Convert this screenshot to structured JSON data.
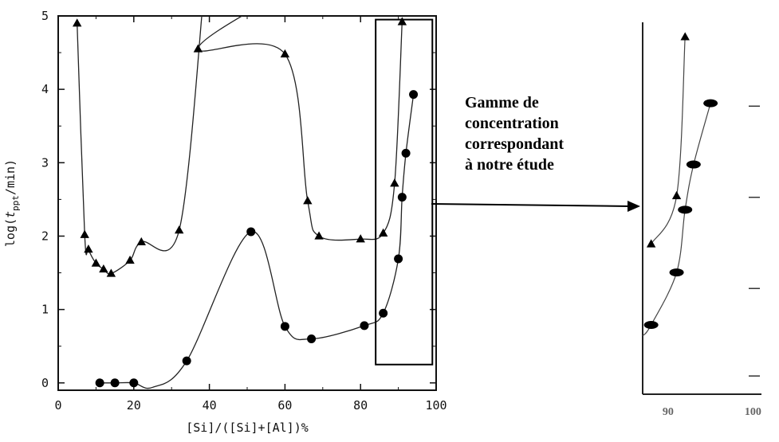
{
  "annotation": {
    "lines": [
      "Gamme de",
      "concentration",
      "correspondant",
      "à notre étude"
    ]
  },
  "chart_data": [
    {
      "type": "scatter",
      "title": "",
      "xlabel": "[Si]/([Si]+[Al])%",
      "ylabel_pre": "log(",
      "ylabel_var": "t",
      "ylabel_sub": "ppt",
      "ylabel_post": "/min)",
      "xlim": [
        0,
        100
      ],
      "ylim": [
        -0.1,
        5
      ],
      "xticks": [
        0,
        20,
        40,
        60,
        80,
        100
      ],
      "yticks": [
        0,
        1,
        2,
        3,
        4,
        5
      ],
      "grid": false,
      "series": [
        {
          "marker": "triangle",
          "points": [
            [
              5,
              4.9
            ],
            [
              7,
              2.02
            ],
            [
              8,
              1.82
            ],
            [
              10,
              1.63
            ],
            [
              12,
              1.55
            ],
            [
              14,
              1.49
            ],
            [
              19,
              1.67
            ],
            [
              22,
              1.92
            ],
            [
              32,
              2.08
            ],
            [
              37,
              4.55
            ],
            [
              60,
              4.48
            ],
            [
              66,
              2.48
            ],
            [
              69,
              2.0
            ],
            [
              80,
              1.96
            ],
            [
              86,
              2.04
            ],
            [
              89,
              2.72
            ],
            [
              91,
              4.92
            ]
          ]
        },
        {
          "marker": "circle",
          "points": [
            [
              11,
              0.0
            ],
            [
              15,
              0.0
            ],
            [
              20,
              0.0
            ],
            [
              34,
              0.3
            ],
            [
              51,
              2.06
            ],
            [
              60,
              0.77
            ],
            [
              67,
              0.6
            ],
            [
              81,
              0.78
            ],
            [
              86,
              0.95
            ],
            [
              90,
              1.69
            ],
            [
              91,
              2.53
            ],
            [
              92,
              3.13
            ],
            [
              94,
              3.93
            ]
          ]
        }
      ],
      "highlight_box": {
        "x": [
          84,
          99
        ],
        "y": [
          0.25,
          4.95
        ]
      }
    },
    {
      "type": "scatter",
      "title": "",
      "xlabel": "",
      "ylabel": "",
      "xlim": [
        87,
        101
      ],
      "ylim": [
        -0.1,
        5
      ],
      "xticks": [
        90,
        100
      ],
      "grid": false,
      "series": [
        {
          "marker": "triangle",
          "points": [
            [
              88,
              1.96
            ],
            [
              91,
              2.62
            ],
            [
              92,
              4.8
            ]
          ]
        },
        {
          "marker": "circle",
          "points": [
            [
              88,
              0.85
            ],
            [
              91,
              1.57
            ],
            [
              92,
              2.43
            ],
            [
              93,
              3.05
            ],
            [
              95,
              3.89
            ]
          ]
        }
      ]
    }
  ]
}
